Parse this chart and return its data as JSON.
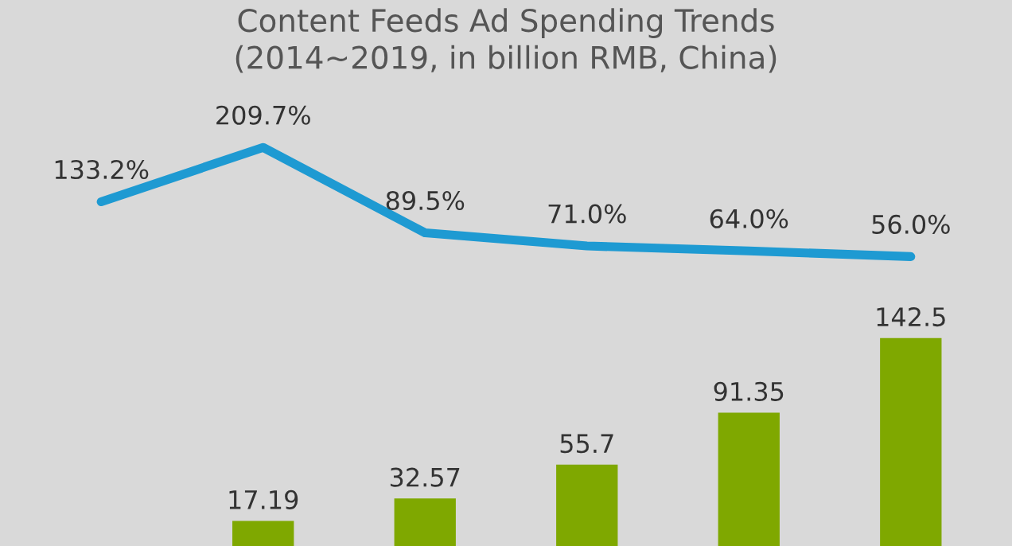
{
  "chart_data": [
    {
      "type": "line",
      "title": "Content Feeds Ad Spending Trends\n(2014~2019, in billion RMB, China)",
      "categories": [
        null,
        null,
        null,
        null,
        null,
        null
      ],
      "series": [
        {
          "color": "#1e9ad2",
          "values": [
            133.2,
            209.7,
            89.5,
            71.0,
            64.0,
            56.0
          ],
          "value_labels": [
            "133.2%",
            "209.7%",
            "89.5%",
            "71.0%",
            "64.0%",
            "56.0%"
          ]
        }
      ],
      "marker": "none"
    },
    {
      "type": "bar",
      "categories": [
        null,
        null,
        null,
        null,
        null
      ],
      "series": [
        {
          "color": "#7fa800",
          "values": [
            17.19,
            32.57,
            55.7,
            91.35,
            142.5
          ],
          "value_labels": [
            "17.19",
            "32.57",
            "55.7",
            "91.35",
            "142.5"
          ]
        }
      ]
    }
  ]
}
